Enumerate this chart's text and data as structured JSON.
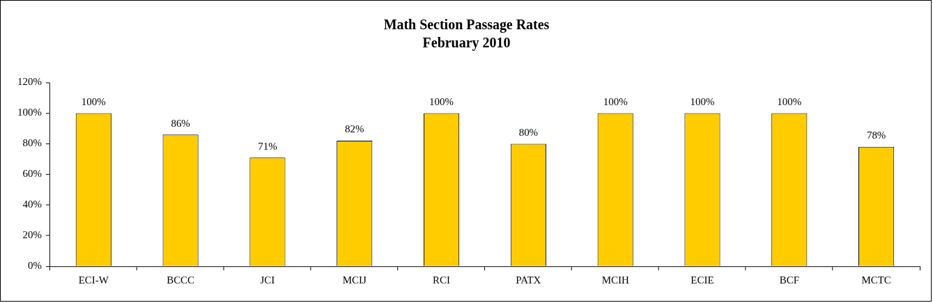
{
  "chart_data": {
    "type": "bar",
    "title": "Math Section Passage Rates",
    "subtitle": "February 2010",
    "categories": [
      "ECI-W",
      "BCCC",
      "JCI",
      "MCIJ",
      "RCI",
      "PATX",
      "MCIH",
      "ECIE",
      "BCF",
      "MCTC"
    ],
    "values": [
      100,
      86,
      71,
      82,
      100,
      80,
      100,
      100,
      100,
      78
    ],
    "value_labels": [
      "100%",
      "86%",
      "71%",
      "82%",
      "100%",
      "80%",
      "100%",
      "100%",
      "100%",
      "78%"
    ],
    "color": "#ffcc00",
    "ylim": [
      0,
      120
    ],
    "yticks": [
      {
        "value": 0,
        "label": "0%"
      },
      {
        "value": 20,
        "label": "20%"
      },
      {
        "value": 40,
        "label": "40%"
      },
      {
        "value": 60,
        "label": "60%"
      },
      {
        "value": 80,
        "label": "80%"
      },
      {
        "value": 100,
        "label": "100%"
      },
      {
        "value": 120,
        "label": "120%"
      }
    ],
    "grid": false,
    "legend": false
  }
}
